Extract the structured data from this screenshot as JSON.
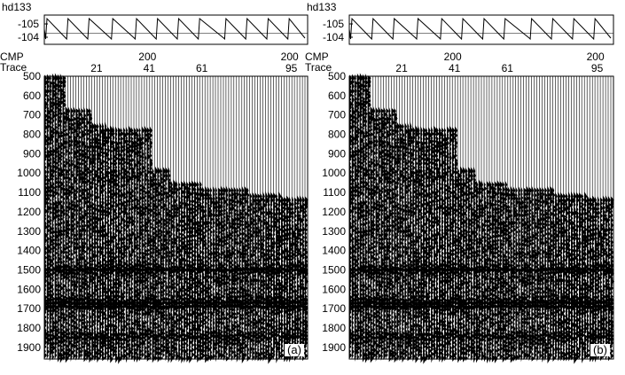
{
  "chart_data": [
    {
      "type": "other",
      "panel_label": "(a)",
      "header": {
        "trace_label": "hd133",
        "y_ticks": [
          "-105",
          "-104"
        ],
        "cmp_label": "CMP",
        "trace_axis_label": "Trace",
        "cmp_ticks": [
          {
            "trace": 41,
            "label": "200"
          },
          {
            "trace": 95,
            "label": "200"
          }
        ],
        "trace_ticks": [
          {
            "trace": 21,
            "label": "21"
          },
          {
            "trace": 41,
            "label": "41"
          },
          {
            "trace": 61,
            "label": "61"
          },
          {
            "trace": 95,
            "label": "95"
          }
        ]
      },
      "time_axis": {
        "labels": [
          "500",
          "600",
          "700",
          "800",
          "900",
          "1000",
          "1100",
          "1200",
          "1300",
          "1400",
          "1500",
          "1600",
          "1700",
          "1800",
          "1900"
        ],
        "range": [
          500,
          1960
        ]
      },
      "traces": {
        "range": [
          1,
          100
        ]
      }
    },
    {
      "type": "other",
      "panel_label": "(b)",
      "header": {
        "trace_label": "hd133",
        "y_ticks": [
          "-105",
          "-104"
        ],
        "cmp_label": "CMP",
        "trace_axis_label": "Trace",
        "cmp_ticks": [
          {
            "trace": 41,
            "label": "200"
          },
          {
            "trace": 95,
            "label": "200"
          }
        ],
        "trace_ticks": [
          {
            "trace": 21,
            "label": "21"
          },
          {
            "trace": 41,
            "label": "41"
          },
          {
            "trace": 61,
            "label": "61"
          },
          {
            "trace": 95,
            "label": "95"
          }
        ]
      },
      "time_axis": {
        "labels": [
          "500",
          "600",
          "700",
          "800",
          "900",
          "1000",
          "1100",
          "1200",
          "1300",
          "1400",
          "1500",
          "1600",
          "1700",
          "1800",
          "1900"
        ],
        "range": [
          500,
          1960
        ]
      },
      "traces": {
        "range": [
          1,
          100
        ]
      }
    }
  ],
  "colors": {
    "ink": "#000000",
    "background": "#ffffff"
  }
}
